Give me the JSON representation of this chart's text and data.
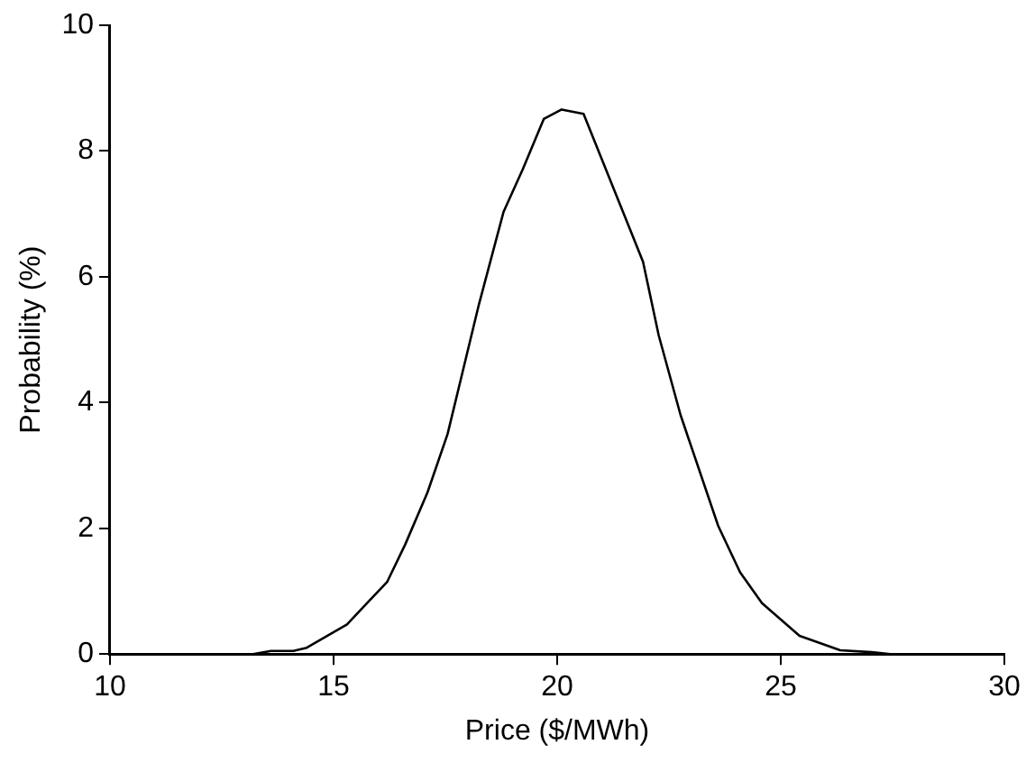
{
  "chart_data": {
    "type": "line",
    "xlabel": "Price ($/MWh)",
    "ylabel": "Probability (%)",
    "x": [
      10,
      13.2,
      13.6,
      14.1,
      14.4,
      15.3,
      15.75,
      16.2,
      16.6,
      17.1,
      17.55,
      18.25,
      18.8,
      19.23,
      19.7,
      20.1,
      20.59,
      21.92,
      22.27,
      22.76,
      23.6,
      24.09,
      24.58,
      25.42,
      26.33,
      27.03,
      27.45,
      30
    ],
    "series": [
      {
        "color": "#000000",
        "values": [
          0,
          0,
          0.05,
          0.05,
          0.1,
          0.47,
          0.81,
          1.15,
          1.74,
          2.57,
          3.5,
          5.56,
          7.03,
          7.71,
          8.51,
          8.66,
          8.59,
          6.24,
          5.07,
          3.8,
          2.04,
          1.3,
          0.81,
          0.29,
          0.06,
          0.03,
          0,
          0
        ]
      }
    ],
    "xlim": [
      10,
      30
    ],
    "xticks": [
      10,
      15,
      20,
      25,
      30
    ],
    "ylim": [
      0,
      10
    ],
    "yticks": [
      0,
      2,
      4,
      6,
      8,
      10
    ],
    "grid": false,
    "legend": false,
    "marker": "none",
    "line_style": "solid"
  }
}
